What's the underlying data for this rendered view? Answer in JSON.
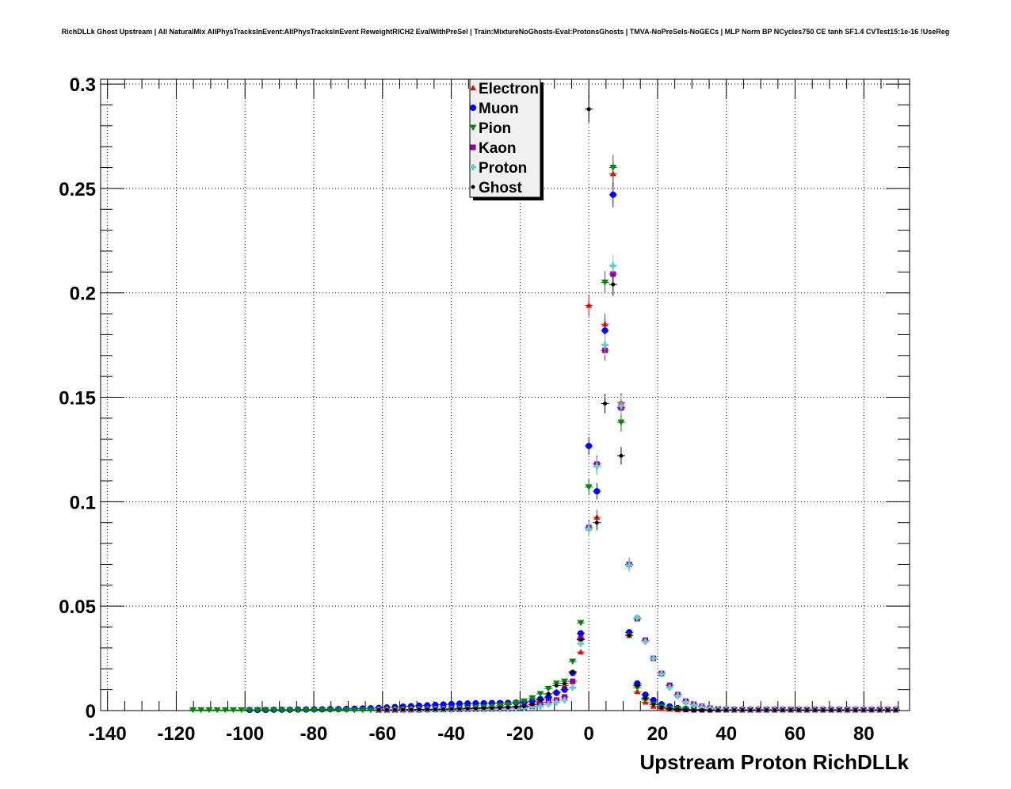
{
  "chart_data": {
    "type": "scatter",
    "title": "RichDLLk Ghost Upstream | All NaturalMix AllPhysTracksInEvent:AllPhysTracksInEvent ReweightRICH2 EvalWithPreSel | Train:MixtureNoGhosts-Eval:ProtonsGhosts | TMVA-NoPreSels-NoGECs | MLP Norm BP NCycles750 CE tanh SF1.4 CVTest15:1e-16 !UseReg",
    "xlabel": "Upstream Proton RichDLLk",
    "ylabel": "",
    "xlim": [
      -142,
      93.3
    ],
    "ylim": [
      0,
      0.3023
    ],
    "grid": true,
    "legend_position": "top-center",
    "x_ticks": [
      -140,
      -120,
      -100,
      -80,
      -60,
      -40,
      -20,
      0,
      20,
      40,
      60,
      80
    ],
    "x_tick_labels": [
      "-140",
      "-120",
      "-100",
      "-80",
      "-60",
      "-40",
      "-20",
      "0",
      "20",
      "40",
      "60",
      "80"
    ],
    "y_ticks": [
      0,
      0.05,
      0.1,
      0.15,
      0.2,
      0.25,
      0.3
    ],
    "y_tick_labels": [
      "0",
      "0.05",
      "0.1",
      "0.15",
      "0.2",
      "0.25",
      "0.3"
    ],
    "bin_width": 2.35,
    "x": [
      -115.15,
      -112.8,
      -110.45,
      -108.1,
      -105.75,
      -103.4,
      -101.05,
      -98.7,
      -96.35,
      -94.0,
      -91.65,
      -89.3,
      -86.95,
      -84.6,
      -82.25,
      -79.9,
      -77.55,
      -75.2,
      -72.85,
      -70.5,
      -68.15,
      -65.8,
      -63.45,
      -61.1,
      -58.75,
      -56.4,
      -54.05,
      -51.7,
      -49.35,
      -47.0,
      -44.65,
      -42.3,
      -39.95,
      -37.6,
      -35.25,
      -32.9,
      -30.55,
      -28.2,
      -25.85,
      -23.5,
      -21.15,
      -18.8,
      -16.45,
      -14.1,
      -11.75,
      -9.4,
      -7.05,
      -4.7,
      -2.35,
      0.0,
      2.35,
      4.7,
      7.05,
      9.4,
      11.75,
      14.1,
      16.45,
      18.8,
      21.15,
      23.5,
      25.85,
      28.2,
      30.55,
      32.9,
      35.25,
      37.6,
      39.95,
      42.3,
      44.65,
      47.0,
      49.35,
      51.7,
      54.05,
      56.4,
      58.75,
      61.1,
      63.45,
      65.8,
      68.15,
      70.5,
      72.85,
      75.2,
      77.55,
      79.9,
      82.25,
      84.6,
      86.95,
      89.3
    ],
    "series": [
      {
        "name": "Electron",
        "color": "#ff0000",
        "marker": "triangle-up",
        "values": [
          null,
          null,
          null,
          null,
          null,
          null,
          null,
          null,
          null,
          null,
          null,
          null,
          null,
          null,
          null,
          null,
          null,
          null,
          null,
          null,
          null,
          null,
          null,
          0.0003,
          0.0003,
          0.0004,
          0.0004,
          0.0005,
          0.0005,
          0.0006,
          0.0006,
          0.0007,
          0.0008,
          0.0009,
          0.001,
          0.0011,
          0.0012,
          0.0013,
          0.0015,
          0.0017,
          0.002,
          0.0025,
          0.003,
          0.004,
          0.006,
          0.009,
          0.012,
          0.014,
          0.028,
          0.194,
          0.0925,
          0.185,
          0.257,
          0.1475,
          0.036,
          0.009,
          0.004,
          0.002,
          0.001,
          0.0006,
          0.0004,
          0.0003,
          0.0002,
          0.0002,
          0.0002,
          0.0002,
          0.0002,
          0.0002,
          0.0002,
          0.0002,
          0.0002,
          0.0002,
          0.0002,
          0.0002,
          0.0002,
          0.0002,
          0.0002,
          0.0002,
          0.0002,
          0.0002,
          0.0002,
          0.0002,
          0.0002,
          0.0002,
          0.0002,
          0.0002,
          0.0002,
          0.0002
        ]
      },
      {
        "name": "Muon",
        "color": "#0000ff",
        "marker": "circle",
        "values": [
          null,
          null,
          null,
          null,
          null,
          null,
          null,
          0.0003,
          0.0003,
          0.0003,
          0.0004,
          0.0004,
          0.0004,
          0.0005,
          0.0005,
          0.0006,
          0.0006,
          0.0007,
          0.0007,
          0.0008,
          0.0009,
          0.001,
          0.0011,
          0.0013,
          0.0015,
          0.0017,
          0.0019,
          0.0021,
          0.0023,
          0.0025,
          0.0027,
          0.0029,
          0.0031,
          0.0033,
          0.0034,
          0.0035,
          0.0035,
          0.0036,
          0.0036,
          0.0037,
          0.0038,
          0.004,
          0.0045,
          0.0055,
          0.0065,
          0.0085,
          0.01,
          0.018,
          0.037,
          0.1267,
          0.105,
          0.182,
          0.247,
          0.145,
          0.0375,
          0.013,
          0.0076,
          0.005,
          0.003,
          0.002,
          0.0012,
          0.0008,
          0.0005,
          0.0005,
          0.0005,
          0.0005,
          0.0005,
          0.0005,
          0.0005,
          0.0005,
          0.0005,
          0.0005,
          0.0005,
          0.0005,
          0.0005,
          0.0005,
          0.0005,
          0.0005,
          0.0005,
          0.0005,
          0.0005,
          0.0005,
          0.0005,
          0.0005,
          0.0005,
          0.0005,
          0.0005,
          0.0005
        ]
      },
      {
        "name": "Pion",
        "color": "#008800",
        "marker": "triangle-down",
        "values": [
          0.0003,
          0.0003,
          0.0003,
          0.0003,
          0.0003,
          0.0003,
          0.0003,
          0.0003,
          0.0003,
          0.0003,
          0.0003,
          0.0003,
          0.0003,
          0.0003,
          0.0003,
          0.0003,
          0.0003,
          0.0003,
          0.0003,
          0.0003,
          0.0003,
          0.0003,
          0.0003,
          0.0004,
          0.0004,
          0.0005,
          0.0005,
          0.0006,
          0.0006,
          0.0007,
          0.0008,
          0.0009,
          0.001,
          0.0011,
          0.0012,
          0.0014,
          0.0016,
          0.0019,
          0.0023,
          0.0028,
          0.0035,
          0.0045,
          0.006,
          0.008,
          0.0105,
          0.013,
          0.014,
          0.0235,
          0.042,
          0.107,
          0.117,
          0.205,
          0.26,
          0.138,
          0.036,
          0.011,
          0.005,
          0.003,
          0.0018,
          0.001,
          0.0007,
          0.0005,
          0.0003,
          0.0003,
          0.0003,
          0.0003,
          0.0003,
          0.0003,
          0.0003,
          0.0003,
          0.0003,
          0.0003,
          0.0003,
          0.0003,
          0.0003,
          0.0003,
          0.0003,
          0.0003,
          0.0003,
          0.0003,
          0.0003,
          0.0003,
          0.0003,
          0.0003,
          0.0003,
          0.0003,
          0.0003,
          0.0003
        ]
      },
      {
        "name": "Kaon",
        "color": "#990099",
        "marker": "square",
        "values": [
          null,
          null,
          null,
          null,
          null,
          null,
          null,
          null,
          null,
          null,
          null,
          null,
          null,
          null,
          null,
          null,
          null,
          null,
          null,
          null,
          null,
          null,
          null,
          0.0003,
          0.0003,
          0.0003,
          0.0004,
          0.0004,
          0.0004,
          0.0005,
          0.0005,
          0.0005,
          0.0006,
          0.0006,
          0.0007,
          0.0007,
          0.0008,
          0.0008,
          0.0009,
          0.0009,
          0.001,
          0.0015,
          0.002,
          0.003,
          0.004,
          0.005,
          0.0065,
          0.014,
          0.0345,
          0.0876,
          0.118,
          0.1725,
          0.209,
          0.145,
          0.07,
          0.044,
          0.0337,
          0.025,
          0.0178,
          0.0121,
          0.0076,
          0.0045,
          0.003,
          0.002,
          0.0012,
          0.0008,
          0.0005,
          0.0004,
          0.0004,
          0.0004,
          0.0004,
          0.0004,
          0.0004,
          0.0004,
          0.0004,
          0.0004,
          0.0004,
          0.0004,
          0.0004,
          0.0004,
          0.0004,
          0.0004,
          0.0004,
          0.0004,
          0.0004,
          0.0004,
          0.0004,
          0.0004
        ]
      },
      {
        "name": "Proton",
        "color": "#66cccc",
        "marker": "cross",
        "values": [
          null,
          null,
          null,
          null,
          null,
          null,
          null,
          null,
          null,
          null,
          null,
          null,
          null,
          null,
          null,
          null,
          null,
          null,
          null,
          null,
          null,
          null,
          null,
          0.0003,
          0.0003,
          0.0003,
          0.0003,
          0.0004,
          0.0004,
          0.0004,
          0.0005,
          0.0005,
          0.0005,
          0.0006,
          0.0006,
          0.0007,
          0.0007,
          0.0008,
          0.0008,
          0.0009,
          0.001,
          0.0012,
          0.0016,
          0.002,
          0.003,
          0.004,
          0.005,
          0.011,
          0.032,
          0.087,
          0.117,
          0.175,
          0.213,
          0.146,
          0.0695,
          0.0445,
          0.033,
          0.025,
          0.0175,
          0.011,
          0.007,
          0.004,
          0.0025,
          0.0015,
          0.001,
          0.0006,
          0.0004,
          0.0003,
          0.0003,
          0.0003,
          0.0003,
          0.0003,
          0.0003,
          0.0003,
          0.0003,
          0.0003,
          0.0003,
          0.0003,
          0.0003,
          0.0003,
          0.0003,
          0.0003,
          0.0003,
          0.0003,
          0.0003,
          0.0003,
          0.0003,
          0.0003
        ]
      },
      {
        "name": "Ghost",
        "color": "#000000",
        "marker": "dot",
        "values": [
          null,
          null,
          null,
          null,
          null,
          null,
          null,
          null,
          null,
          null,
          null,
          null,
          null,
          null,
          null,
          null,
          null,
          null,
          null,
          null,
          null,
          null,
          null,
          0.0003,
          0.0003,
          0.0003,
          0.0004,
          0.0004,
          0.0005,
          0.0005,
          0.0006,
          0.0006,
          0.0007,
          0.0008,
          0.0009,
          0.001,
          0.0011,
          0.0012,
          0.0013,
          0.0015,
          0.0017,
          0.002,
          0.003,
          0.005,
          0.008,
          0.012,
          0.013,
          0.0186,
          0.034,
          0.288,
          0.09,
          0.147,
          0.204,
          0.122,
          0.036,
          0.012,
          0.006,
          0.003,
          0.0015,
          0.0008,
          0.0005,
          0.0003,
          0.0002,
          0.0002,
          0.0002,
          0.0002,
          0.0002,
          0.0002,
          0.0002,
          0.0002,
          0.0002,
          0.0002,
          0.0002,
          0.0002,
          0.0002,
          0.0002,
          0.0002,
          0.0002,
          0.0002,
          0.0002,
          0.0002,
          0.0002,
          0.0002,
          0.0002,
          0.0002,
          0.0002,
          0.0002,
          0.0002
        ]
      }
    ]
  }
}
